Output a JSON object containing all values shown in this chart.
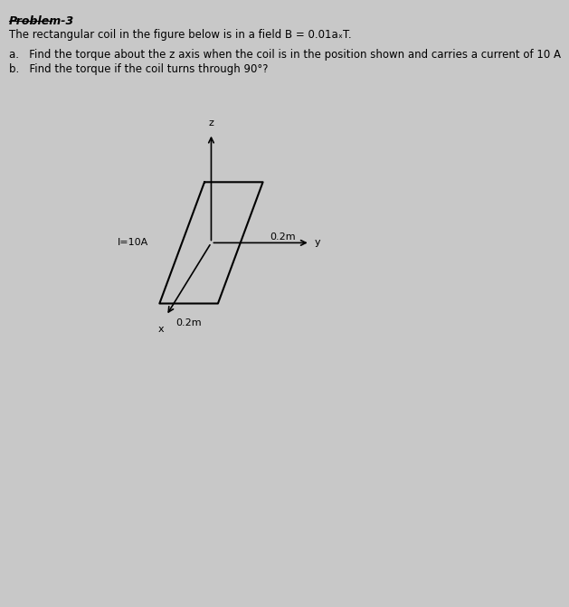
{
  "background_color": "#c8c8c8",
  "title_text": "Problem-3",
  "line1": "The rectangular coil in the figure below is in a field B = 0.01aₓT.",
  "line2a": "a.   Find the torque about the z axis when the coil is in the position shown and carries a current of 10 A",
  "line2b": "b.   Find the torque if the coil turns through 90°?",
  "label_02m_top": "0.2m",
  "label_02m_bottom": "0.2m",
  "label_current": "I=10A",
  "label_x": "x",
  "label_y": "y",
  "label_z": "z",
  "coil_color": "#000000",
  "text_color": "#000000",
  "axis_color": "#000000",
  "font_size_title": 9,
  "font_size_body": 8.5,
  "font_size_labels": 8,
  "ox": 0.47,
  "oy": 0.6,
  "shear": 0.05,
  "hw": 0.065,
  "hh": 0.1
}
